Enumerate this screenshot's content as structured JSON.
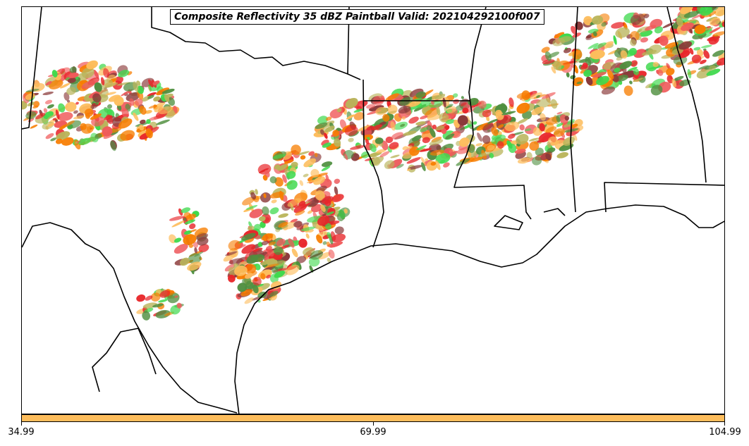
{
  "title": "Composite Reflectivity 35 dBZ Paintball Valid: 202104292100f007",
  "colorbar": {
    "color": "#fdbd5c",
    "ticks": [
      "34.99",
      "69.99",
      "104.99"
    ]
  },
  "paintball_colors": [
    "#e8262a",
    "#f77d00",
    "#fdbd5c",
    "#b9b45a",
    "#3fd94d",
    "#4f8f3f",
    "#8b3a3a",
    "#f05a5a"
  ]
}
